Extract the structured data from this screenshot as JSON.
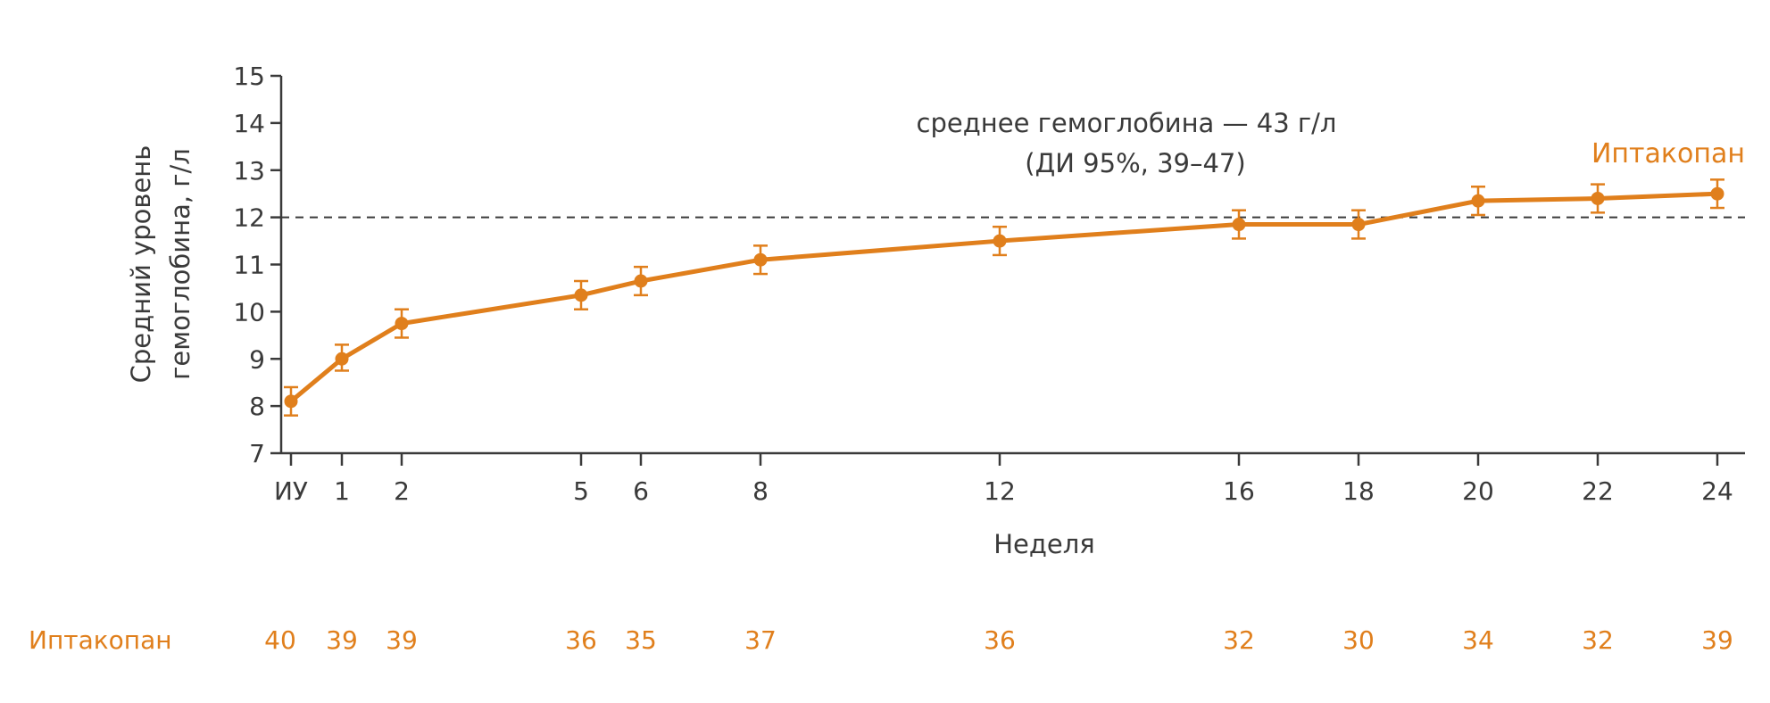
{
  "colors": {
    "series": "#e07f1c",
    "axis": "#3a3a3a",
    "reference_line": "#3a3a3a"
  },
  "chart_data": {
    "type": "line",
    "xlabel": "Неделя",
    "ylabel_lines": [
      "Средний уровень",
      "гемоглобина, г/л"
    ],
    "ylim": [
      7,
      15
    ],
    "y_ticks": [
      7,
      8,
      9,
      10,
      11,
      12,
      13,
      14,
      15
    ],
    "x_ticks": [
      {
        "week": 0,
        "label": "ИУ"
      },
      {
        "week": 1,
        "label": "1"
      },
      {
        "week": 2,
        "label": "2"
      },
      {
        "week": 5,
        "label": "5"
      },
      {
        "week": 6,
        "label": "6"
      },
      {
        "week": 8,
        "label": "8"
      },
      {
        "week": 12,
        "label": "12"
      },
      {
        "week": 16,
        "label": "16"
      },
      {
        "week": 18,
        "label": "18"
      },
      {
        "week": 20,
        "label": "20"
      },
      {
        "week": 22,
        "label": "22"
      },
      {
        "week": 24,
        "label": "24"
      }
    ],
    "grid": false,
    "reference_line": {
      "y": 12,
      "style": "dashed"
    },
    "annotation_lines": [
      "среднее гемоглобина — 43 г/л",
      "(ДИ 95%, 39–47)"
    ],
    "series": [
      {
        "name": "Иптакопан",
        "points": [
          {
            "x": 0,
            "y": 8.1,
            "lo": 7.8,
            "hi": 8.4
          },
          {
            "x": 1,
            "y": 9.0,
            "lo": 8.75,
            "hi": 9.3
          },
          {
            "x": 2,
            "y": 9.75,
            "lo": 9.45,
            "hi": 10.05
          },
          {
            "x": 5,
            "y": 10.35,
            "lo": 10.05,
            "hi": 10.65
          },
          {
            "x": 6,
            "y": 10.65,
            "lo": 10.35,
            "hi": 10.95
          },
          {
            "x": 8,
            "y": 11.1,
            "lo": 10.8,
            "hi": 11.4
          },
          {
            "x": 12,
            "y": 11.5,
            "lo": 11.2,
            "hi": 11.8
          },
          {
            "x": 16,
            "y": 11.85,
            "lo": 11.55,
            "hi": 12.15
          },
          {
            "x": 18,
            "y": 11.85,
            "lo": 11.55,
            "hi": 12.15
          },
          {
            "x": 20,
            "y": 12.35,
            "lo": 12.05,
            "hi": 12.65
          },
          {
            "x": 22,
            "y": 12.4,
            "lo": 12.1,
            "hi": 12.7
          },
          {
            "x": 24,
            "y": 12.5,
            "lo": 12.2,
            "hi": 12.8
          }
        ]
      }
    ],
    "patients_at_risk": {
      "label": "Иптакопан",
      "values": [
        {
          "week": 0,
          "value": "40"
        },
        {
          "week": 1,
          "value": "39"
        },
        {
          "week": 2,
          "value": "39"
        },
        {
          "week": 5,
          "value": "36"
        },
        {
          "week": 6,
          "value": "35"
        },
        {
          "week": 8,
          "value": "37"
        },
        {
          "week": 12,
          "value": "36"
        },
        {
          "week": 16,
          "value": "32"
        },
        {
          "week": 18,
          "value": "30"
        },
        {
          "week": 20,
          "value": "34"
        },
        {
          "week": 22,
          "value": "32"
        },
        {
          "week": 24,
          "value": "39"
        }
      ]
    }
  }
}
